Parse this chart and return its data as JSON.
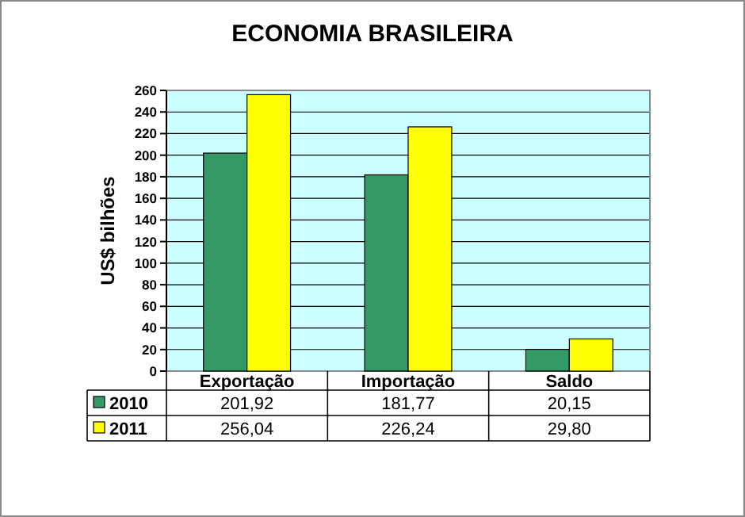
{
  "chart_data": {
    "type": "bar",
    "title": "ECONOMIA BRASILEIRA",
    "ylabel": "US$ bilhões",
    "categories": [
      "Exportação",
      "Importação",
      "Saldo"
    ],
    "series": [
      {
        "name": "2010",
        "color": "#339966",
        "values": [
          201.92,
          181.77,
          20.15
        ],
        "value_labels": [
          "201,92",
          "181,77",
          "20,15"
        ]
      },
      {
        "name": "2011",
        "color": "#ffff00",
        "values": [
          256.04,
          226.24,
          29.8
        ],
        "value_labels": [
          "256,04",
          "226,24",
          "29,80"
        ]
      }
    ],
    "ylim": [
      0,
      260
    ],
    "yticks": [
      0,
      20,
      40,
      60,
      80,
      100,
      120,
      140,
      160,
      180,
      200,
      220,
      240,
      260
    ],
    "grid": "y",
    "legend": "bottom left"
  }
}
